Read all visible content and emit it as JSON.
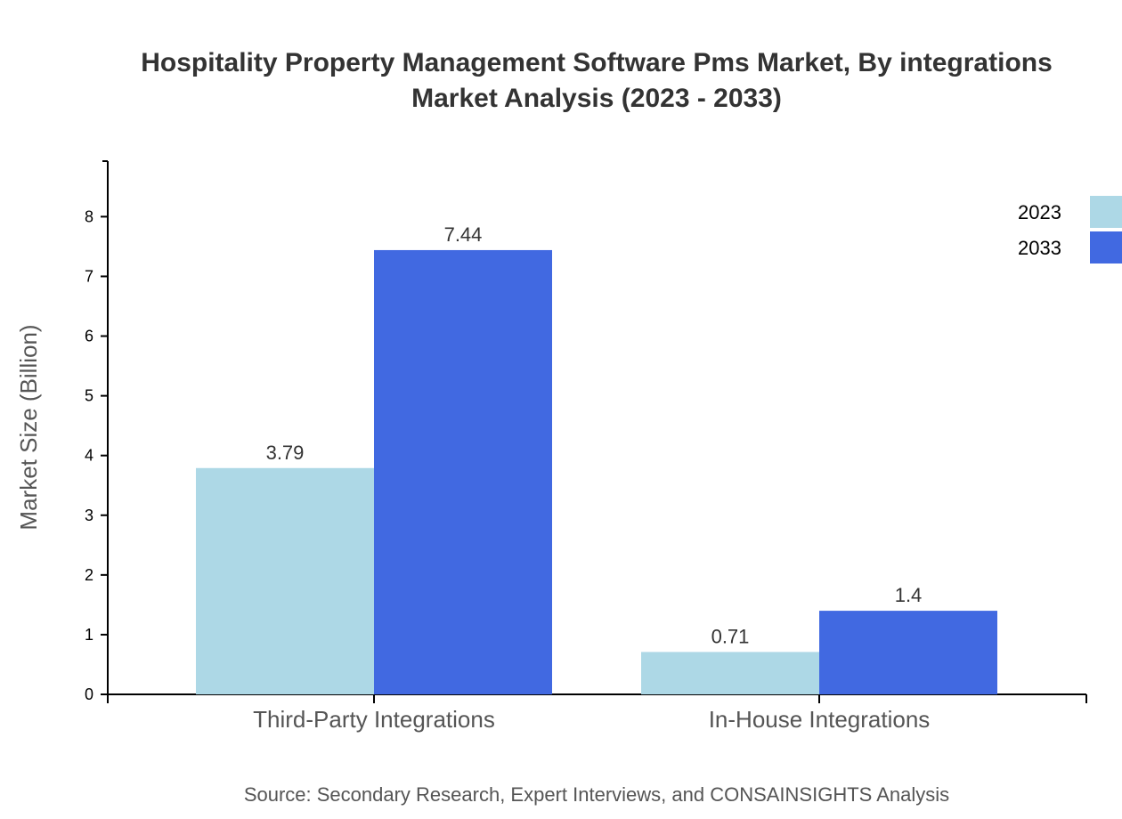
{
  "chart_data": {
    "type": "bar",
    "title_lines": [
      "Hospitality Property Management Software Pms Market, By integrations",
      "Market Analysis (2023 - 2033)"
    ],
    "xlabel": "",
    "ylabel": "Market Size (Billion)",
    "categories": [
      "Third-Party Integrations",
      "In-House Integrations"
    ],
    "series": [
      {
        "name": "2023",
        "values": [
          3.79,
          0.71
        ],
        "color": "#add8e6"
      },
      {
        "name": "2033",
        "values": [
          7.44,
          1.4
        ],
        "color": "#4169e1"
      }
    ],
    "data_labels": [
      [
        "3.79",
        "0.71"
      ],
      [
        "7.44",
        "1.4"
      ]
    ],
    "ylim": [
      0,
      8.93
    ],
    "yticks": [
      0,
      1,
      2,
      3,
      4,
      5,
      6,
      7,
      8
    ],
    "grid": false,
    "legend_position": "top-right",
    "source": "Source: Secondary Research, Expert Interviews, and CONSAINSIGHTS Analysis"
  }
}
